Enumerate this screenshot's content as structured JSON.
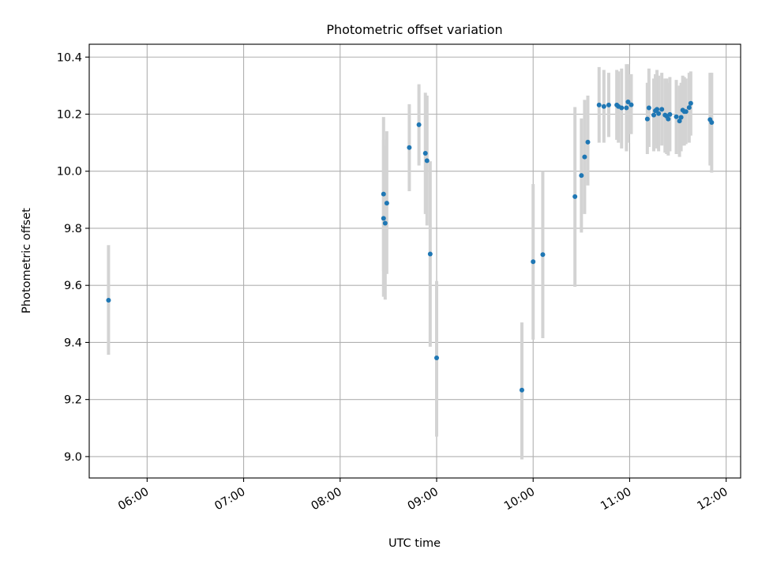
{
  "chart_data": {
    "type": "scatter",
    "title": "Photometric offset variation",
    "xlabel": "UTC time",
    "ylabel": "Photometric offset",
    "xlim": [
      "05:24",
      "12:09"
    ],
    "ylim": [
      8.925,
      10.445
    ],
    "grid": true,
    "x_ticks": [
      "06:00",
      "07:00",
      "08:00",
      "09:00",
      "10:00",
      "11:00",
      "12:00"
    ],
    "y_ticks": [
      "9.0",
      "9.2",
      "9.4",
      "9.6",
      "9.8",
      "10.0",
      "10.2",
      "10.4"
    ],
    "marker_color": "#1f77b4",
    "errorbar_color": "#d3d3d3",
    "series": [
      {
        "points": [
          {
            "x": "05:36",
            "y": 9.548,
            "ylo": 9.357,
            "yhi": 9.741
          },
          {
            "x": "08:27",
            "y": 9.92,
            "ylo": 9.65,
            "yhi": 10.19
          },
          {
            "x": "08:27",
            "y": 9.835,
            "ylo": 9.56,
            "yhi": 10.11
          },
          {
            "x": "08:28",
            "y": 9.818,
            "ylo": 9.55,
            "yhi": 10.09
          },
          {
            "x": "08:29",
            "y": 9.888,
            "ylo": 9.64,
            "yhi": 10.14
          },
          {
            "x": "08:43",
            "y": 10.083,
            "ylo": 9.93,
            "yhi": 10.235
          },
          {
            "x": "08:49",
            "y": 10.163,
            "ylo": 10.02,
            "yhi": 10.305
          },
          {
            "x": "08:53",
            "y": 10.063,
            "ylo": 9.85,
            "yhi": 10.275
          },
          {
            "x": "08:54",
            "y": 10.037,
            "ylo": 9.81,
            "yhi": 10.265
          },
          {
            "x": "08:56",
            "y": 9.71,
            "ylo": 9.385,
            "yhi": 10.035
          },
          {
            "x": "09:00",
            "y": 9.346,
            "ylo": 9.07,
            "yhi": 9.615
          },
          {
            "x": "09:53",
            "y": 9.233,
            "ylo": 8.99,
            "yhi": 9.47
          },
          {
            "x": "10:00",
            "y": 9.683,
            "ylo": 9.41,
            "yhi": 9.955
          },
          {
            "x": "10:06",
            "y": 9.708,
            "ylo": 9.415,
            "yhi": 10.0
          },
          {
            "x": "10:26",
            "y": 9.911,
            "ylo": 9.595,
            "yhi": 10.225
          },
          {
            "x": "10:30",
            "y": 9.985,
            "ylo": 9.785,
            "yhi": 10.185
          },
          {
            "x": "10:32",
            "y": 10.05,
            "ylo": 9.85,
            "yhi": 10.25
          },
          {
            "x": "10:34",
            "y": 10.102,
            "ylo": 9.95,
            "yhi": 10.265
          },
          {
            "x": "10:41",
            "y": 10.232,
            "ylo": 10.1,
            "yhi": 10.365
          },
          {
            "x": "10:44",
            "y": 10.227,
            "ylo": 10.1,
            "yhi": 10.355
          },
          {
            "x": "10:47",
            "y": 10.232,
            "ylo": 10.12,
            "yhi": 10.345
          },
          {
            "x": "10:52",
            "y": 10.232,
            "ylo": 10.11,
            "yhi": 10.355
          },
          {
            "x": "10:53",
            "y": 10.227,
            "ylo": 10.1,
            "yhi": 10.35
          },
          {
            "x": "10:55",
            "y": 10.222,
            "ylo": 10.08,
            "yhi": 10.36
          },
          {
            "x": "10:58",
            "y": 10.222,
            "ylo": 10.07,
            "yhi": 10.375
          },
          {
            "x": "10:59",
            "y": 10.243,
            "ylo": 10.1,
            "yhi": 10.375
          },
          {
            "x": "11:01",
            "y": 10.233,
            "ylo": 10.13,
            "yhi": 10.34
          },
          {
            "x": "11:11",
            "y": 10.183,
            "ylo": 10.06,
            "yhi": 10.31
          },
          {
            "x": "11:12",
            "y": 10.222,
            "ylo": 10.085,
            "yhi": 10.36
          },
          {
            "x": "11:15",
            "y": 10.197,
            "ylo": 10.07,
            "yhi": 10.325
          },
          {
            "x": "11:16",
            "y": 10.212,
            "ylo": 10.09,
            "yhi": 10.34
          },
          {
            "x": "11:17",
            "y": 10.217,
            "ylo": 10.08,
            "yhi": 10.355
          },
          {
            "x": "11:18",
            "y": 10.202,
            "ylo": 10.07,
            "yhi": 10.335
          },
          {
            "x": "11:20",
            "y": 10.217,
            "ylo": 10.09,
            "yhi": 10.345
          },
          {
            "x": "11:22",
            "y": 10.197,
            "ylo": 10.065,
            "yhi": 10.325
          },
          {
            "x": "11:23",
            "y": 10.193,
            "ylo": 10.06,
            "yhi": 10.325
          },
          {
            "x": "11:24",
            "y": 10.183,
            "ylo": 10.055,
            "yhi": 10.31
          },
          {
            "x": "11:25",
            "y": 10.199,
            "ylo": 10.07,
            "yhi": 10.33
          },
          {
            "x": "11:29",
            "y": 10.191,
            "ylo": 10.06,
            "yhi": 10.32
          },
          {
            "x": "11:31",
            "y": 10.176,
            "ylo": 10.05,
            "yhi": 10.3
          },
          {
            "x": "11:32",
            "y": 10.189,
            "ylo": 10.07,
            "yhi": 10.31
          },
          {
            "x": "11:33",
            "y": 10.214,
            "ylo": 10.09,
            "yhi": 10.335
          },
          {
            "x": "11:34",
            "y": 10.209,
            "ylo": 10.09,
            "yhi": 10.33
          },
          {
            "x": "11:35",
            "y": 10.209,
            "ylo": 10.095,
            "yhi": 10.325
          },
          {
            "x": "11:37",
            "y": 10.223,
            "ylo": 10.1,
            "yhi": 10.345
          },
          {
            "x": "11:38",
            "y": 10.238,
            "ylo": 10.125,
            "yhi": 10.35
          },
          {
            "x": "11:50",
            "y": 10.181,
            "ylo": 10.02,
            "yhi": 10.345
          },
          {
            "x": "11:51",
            "y": 10.171,
            "ylo": 9.995,
            "yhi": 10.345
          }
        ]
      }
    ]
  }
}
